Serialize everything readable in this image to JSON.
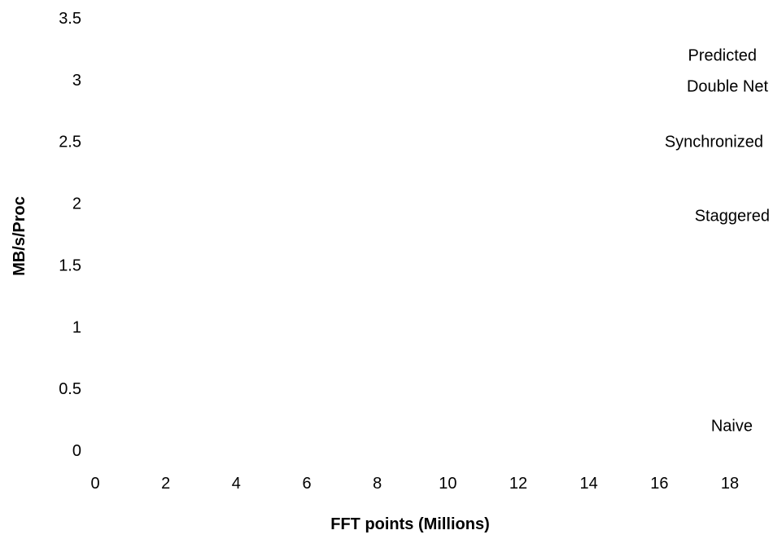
{
  "chart_data": {
    "type": "line",
    "title": "",
    "xlabel": "FFT points (Millions)",
    "ylabel": "MB/s/Proc",
    "xlim": [
      0,
      18
    ],
    "ylim": [
      0,
      3.5
    ],
    "x_ticks": [
      "0",
      "2",
      "4",
      "6",
      "8",
      "10",
      "12",
      "14",
      "16",
      "18"
    ],
    "y_ticks": [
      "0",
      "0.5",
      "1",
      "1.5",
      "2",
      "2.5",
      "3",
      "3.5"
    ],
    "grid": false,
    "series": [
      {
        "name": "Predicted",
        "end_value": 3.2
      },
      {
        "name": "Double Net",
        "end_value": 2.95
      },
      {
        "name": "Synchronized",
        "end_value": 2.5
      },
      {
        "name": "Staggered",
        "end_value": 1.9
      },
      {
        "name": "Naive",
        "end_value": 0.2
      }
    ]
  }
}
